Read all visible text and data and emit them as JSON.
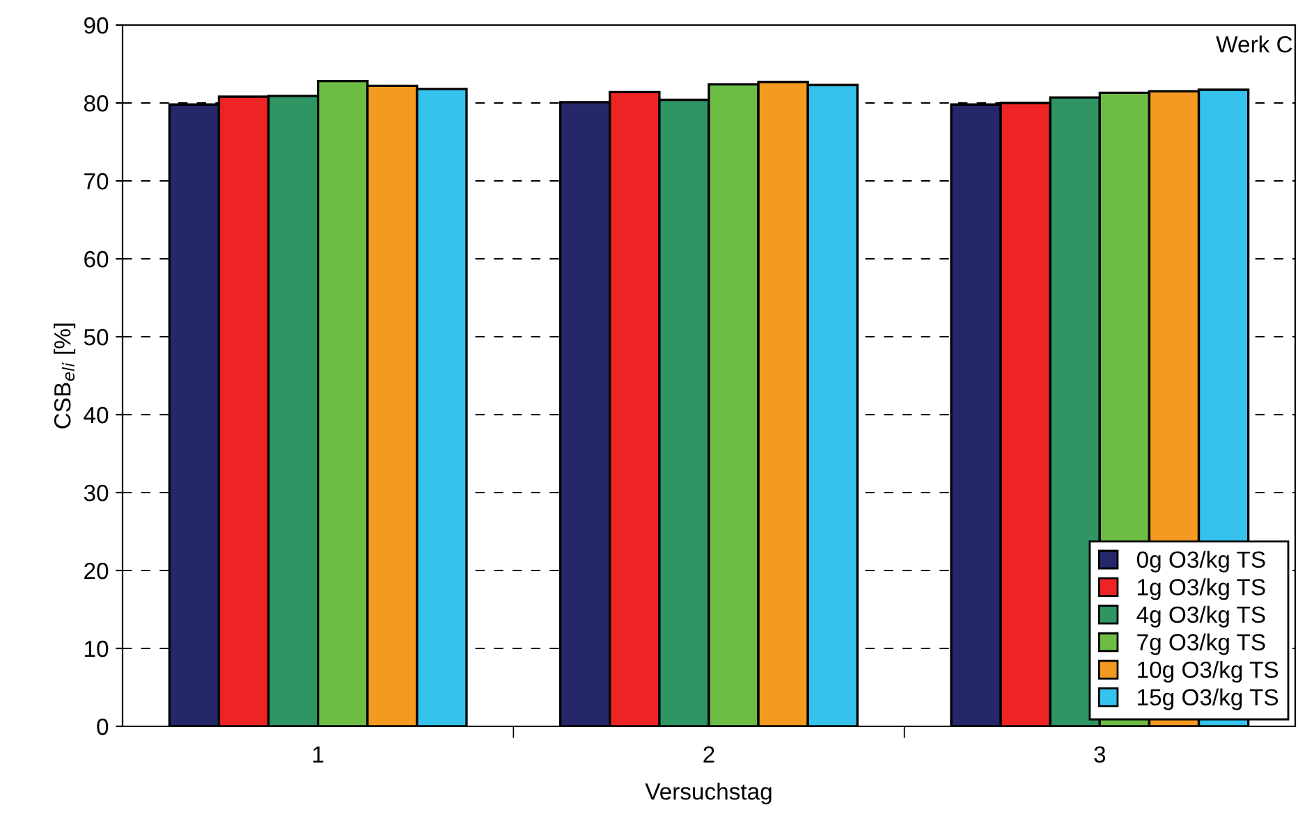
{
  "chart_data": {
    "type": "bar",
    "xlabel": "Versuchstag",
    "ylabel": "CSB$_{eli}$ [%]",
    "categories": [
      "1",
      "2",
      "3"
    ],
    "series": [
      {
        "name": "0g O3/kg TS",
        "color": "#26266b",
        "values": [
          79.8,
          80.1,
          79.8
        ]
      },
      {
        "name": "1g O3/kg TS",
        "color": "#ee2424",
        "values": [
          80.8,
          81.4,
          80.0
        ]
      },
      {
        "name": "4g O3/kg TS",
        "color": "#2e9563",
        "values": [
          80.9,
          80.4,
          80.7
        ]
      },
      {
        "name": "7g O3/kg TS",
        "color": "#6dbd45",
        "values": [
          82.8,
          82.4,
          81.3
        ]
      },
      {
        "name": "10g O3/kg TS",
        "color": "#f49a20",
        "values": [
          82.2,
          82.7,
          81.5
        ]
      },
      {
        "name": "15g O3/kg TS",
        "color": "#35c3ee",
        "values": [
          81.8,
          82.3,
          81.7
        ]
      }
    ],
    "ylim": [
      0,
      90
    ],
    "yticks": [
      0,
      10,
      20,
      30,
      40,
      50,
      60,
      70,
      80,
      90
    ],
    "grid": "y",
    "line_style": "dashed",
    "legend": "bottom right",
    "annotations": [
      "Werk C"
    ]
  }
}
